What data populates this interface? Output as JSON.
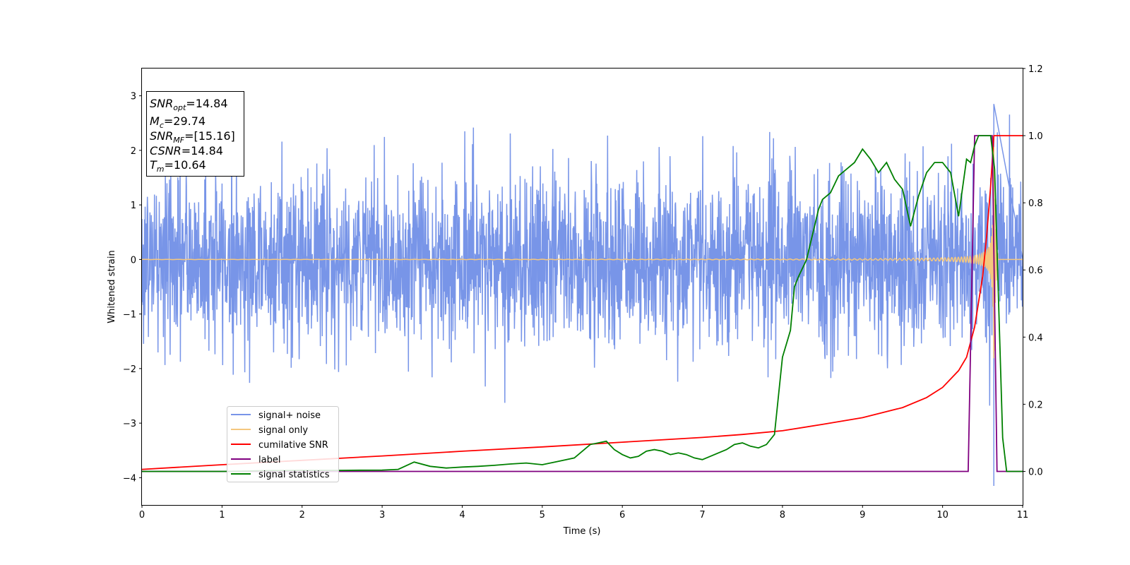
{
  "chart_data": {
    "type": "line",
    "xlabel": "Time (s)",
    "ylabel": "Whitened strain",
    "xlim": [
      0,
      11
    ],
    "ylim": [
      -4.5,
      3.5
    ],
    "y2lim": [
      -0.1,
      1.2
    ],
    "x_ticks": [
      "0",
      "1",
      "2",
      "3",
      "4",
      "5",
      "6",
      "7",
      "8",
      "9",
      "10",
      "11"
    ],
    "y_ticks": [
      "−4",
      "−3",
      "−2",
      "−1",
      "0",
      "1",
      "2",
      "3"
    ],
    "y2_ticks": [
      "0.0",
      "0.2",
      "0.4",
      "0.6",
      "0.8",
      "1.0",
      "1.2"
    ],
    "grid": false,
    "legend_position": "lower-left",
    "info_box": {
      "snr_opt": {
        "base": "SNR",
        "sub": "opt",
        "value": "=14.84"
      },
      "mc": {
        "base": "M",
        "sub": "c",
        "value": "=29.74"
      },
      "snr_mf": {
        "base": "SNR",
        "sub": "MF",
        "value": "=[15.16]"
      },
      "csnr": {
        "base": "CSNR",
        "value": "=14.84"
      },
      "tm": {
        "base": "T",
        "sub": "m",
        "value": "=10.64"
      }
    },
    "series": [
      {
        "name": "signal+ noise",
        "axis": "left",
        "color": "#7895e8",
        "kind": "noise",
        "sigma": 0.8,
        "typical_range": [
          -2.5,
          2.7
        ],
        "peak": {
          "x": 10.64,
          "y": 2.85
        },
        "trough": {
          "x": 10.64,
          "y": -4.15
        }
      },
      {
        "name": "signal only",
        "axis": "left",
        "color": "#f5c77e",
        "kind": "chirp",
        "merger_time": 10.64,
        "peak_amplitude": 2.5
      },
      {
        "name": "cumilative SNR",
        "axis": "right",
        "color": "#ff0000",
        "x": [
          0,
          1,
          2,
          3,
          4,
          5,
          6,
          7,
          7.5,
          8,
          8.5,
          9,
          9.5,
          9.8,
          10,
          10.2,
          10.3,
          10.4,
          10.5,
          10.55,
          10.6,
          10.64,
          11
        ],
        "values": [
          0.006,
          0.02,
          0.033,
          0.046,
          0.06,
          0.073,
          0.087,
          0.101,
          0.11,
          0.121,
          0.14,
          0.16,
          0.19,
          0.22,
          0.25,
          0.3,
          0.34,
          0.43,
          0.58,
          0.7,
          0.85,
          1.0,
          1.0
        ]
      },
      {
        "name": "label",
        "axis": "right",
        "color": "#800080",
        "x": [
          0,
          10.32,
          10.4,
          10.62,
          10.68,
          11
        ],
        "values": [
          0,
          0,
          1,
          1,
          0,
          0
        ]
      },
      {
        "name": "signal statistics",
        "axis": "right",
        "color": "#008000",
        "x": [
          0,
          0.5,
          1,
          1.5,
          2,
          2.5,
          3,
          3.2,
          3.4,
          3.6,
          3.8,
          4,
          4.2,
          4.4,
          4.6,
          4.8,
          5,
          5.2,
          5.4,
          5.6,
          5.7,
          5.8,
          5.9,
          6,
          6.1,
          6.2,
          6.3,
          6.4,
          6.5,
          6.6,
          6.7,
          6.8,
          6.9,
          7,
          7.1,
          7.2,
          7.3,
          7.4,
          7.5,
          7.6,
          7.7,
          7.8,
          7.9,
          8,
          8.05,
          8.1,
          8.15,
          8.2,
          8.3,
          8.4,
          8.45,
          8.5,
          8.6,
          8.7,
          8.8,
          8.9,
          9,
          9.1,
          9.2,
          9.3,
          9.4,
          9.5,
          9.6,
          9.7,
          9.8,
          9.9,
          10,
          10.1,
          10.2,
          10.3,
          10.35,
          10.4,
          10.45,
          10.5,
          10.55,
          10.6,
          10.65,
          10.7,
          10.75,
          10.8,
          11
        ],
        "values": [
          0.0,
          0.0,
          0.0,
          0.002,
          0.003,
          0.003,
          0.004,
          0.006,
          0.028,
          0.015,
          0.01,
          0.013,
          0.015,
          0.018,
          0.022,
          0.025,
          0.02,
          0.03,
          0.04,
          0.08,
          0.085,
          0.09,
          0.065,
          0.05,
          0.04,
          0.045,
          0.06,
          0.065,
          0.06,
          0.05,
          0.055,
          0.05,
          0.04,
          0.035,
          0.045,
          0.055,
          0.065,
          0.08,
          0.085,
          0.075,
          0.07,
          0.08,
          0.11,
          0.34,
          0.38,
          0.42,
          0.55,
          0.58,
          0.63,
          0.73,
          0.78,
          0.81,
          0.83,
          0.88,
          0.9,
          0.92,
          0.96,
          0.93,
          0.89,
          0.92,
          0.87,
          0.84,
          0.73,
          0.82,
          0.89,
          0.92,
          0.92,
          0.89,
          0.76,
          0.93,
          0.92,
          0.97,
          1.0,
          1.0,
          1.0,
          1.0,
          0.9,
          0.5,
          0.1,
          0.0,
          0.0
        ]
      }
    ]
  }
}
